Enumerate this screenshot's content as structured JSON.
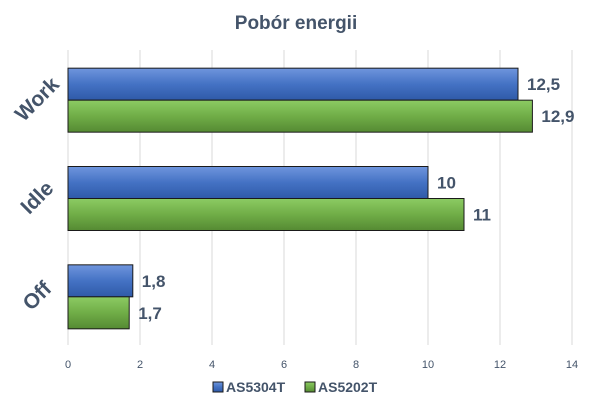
{
  "chart_data": {
    "type": "bar",
    "orientation": "horizontal",
    "title": "Pobór energii",
    "categories": [
      "Work",
      "Idle",
      "Off"
    ],
    "series": [
      {
        "name": "AS5304T",
        "values": [
          12.5,
          10,
          1.8
        ],
        "labels": [
          "12,5",
          "10",
          "1,8"
        ],
        "color": "#4472c4"
      },
      {
        "name": "AS5202T",
        "values": [
          12.9,
          11,
          1.7
        ],
        "labels": [
          "12,9",
          "11",
          "1,7"
        ],
        "color": "#70ad47"
      }
    ],
    "xlim": [
      0,
      14
    ],
    "xticks": [
      0,
      2,
      4,
      6,
      8,
      10,
      12,
      14
    ],
    "grid": "vertical",
    "legend": "bottom",
    "xlabel": "",
    "ylabel": ""
  }
}
